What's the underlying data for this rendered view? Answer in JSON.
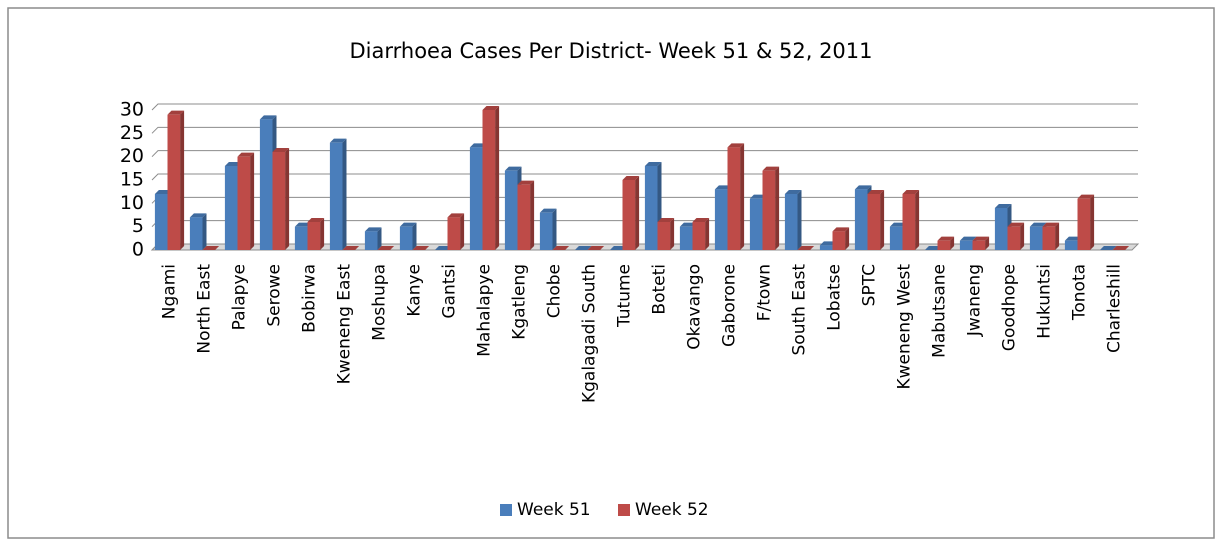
{
  "chart_data": {
    "type": "bar",
    "title": "Diarrhoea Cases Per District- Week 51 & 52, 2011",
    "categories": [
      "Ngami",
      "North East",
      "Palapye",
      "Serowe",
      "Bobirwa",
      "Kweneng East",
      "Moshupa",
      "Kanye",
      "Gantsi",
      "Mahalapye",
      "Kgatleng",
      "Chobe",
      "Kgalagadi South",
      "Tutume",
      "Boteti",
      "Okavango",
      "Gaborone",
      "F/town",
      "South East",
      "Lobatse",
      "SPTC",
      "Kweneng West",
      "Mabutsane",
      "Jwaneng",
      "Goodhope",
      "Hukuntsi",
      "Tonota",
      "Charleshill"
    ],
    "series": [
      {
        "name": "Week 51",
        "color": "#4a7ebb",
        "values": [
          12,
          7,
          18,
          28,
          5,
          23,
          4,
          5,
          0,
          22,
          17,
          8,
          0,
          0,
          18,
          5,
          13,
          11,
          12,
          1,
          13,
          5,
          0,
          2,
          9,
          5,
          2,
          0
        ]
      },
      {
        "name": "Week 52",
        "color": "#be4b48",
        "values": [
          29,
          0,
          20,
          21,
          6,
          0,
          0,
          0,
          7,
          30,
          14,
          0,
          0,
          15,
          6,
          6,
          22,
          17,
          0,
          4,
          12,
          12,
          2,
          2,
          5,
          5,
          11,
          0
        ]
      }
    ],
    "ylim": [
      0,
      30
    ],
    "yticks": [
      0,
      5,
      10,
      15,
      20,
      25,
      30
    ],
    "grid": true,
    "legend": "bottom"
  }
}
